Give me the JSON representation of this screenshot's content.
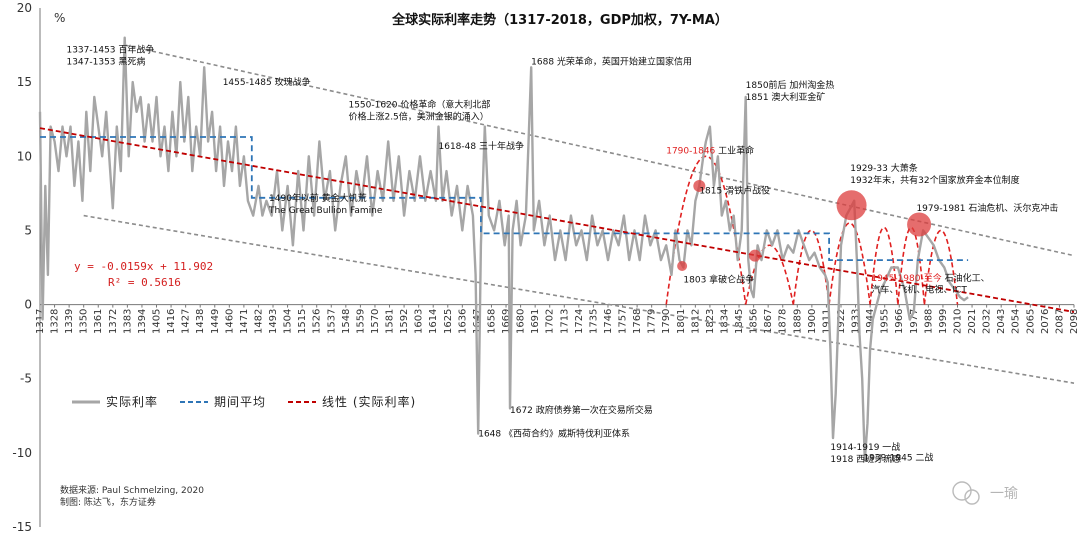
{
  "chart_data": {
    "type": "line",
    "title": "全球实际利率走势（1317-2018，GDP加权，7Y-MA）",
    "ylabel": "%",
    "ylim": [
      -15,
      20
    ],
    "xlim": [
      1317,
      2098
    ],
    "y_ticks": [
      20,
      15,
      10,
      5,
      0,
      -5,
      -10,
      -15
    ],
    "x_ticks": [
      1317,
      1328,
      1339,
      1350,
      1361,
      1372,
      1383,
      1394,
      1405,
      1416,
      1427,
      1438,
      1449,
      1460,
      1471,
      1482,
      1493,
      1504,
      1515,
      1526,
      1537,
      1548,
      1559,
      1570,
      1581,
      1592,
      1603,
      1614,
      1625,
      1636,
      1647,
      1658,
      1669,
      1680,
      1691,
      1702,
      1713,
      1724,
      1735,
      1746,
      1757,
      1768,
      1779,
      1790,
      1801,
      1812,
      1823,
      1834,
      1845,
      1856,
      1867,
      1878,
      1889,
      1900,
      1911,
      1922,
      1933,
      1944,
      1955,
      1966,
      1977,
      1988,
      1999,
      2010,
      2021,
      2032,
      2043,
      2054,
      2065,
      2076,
      2087,
      2098
    ],
    "series": [
      {
        "name": "实际利率",
        "color": "#a6a6a6",
        "points": [
          [
            1317,
            13
          ],
          [
            1319,
            -1
          ],
          [
            1321,
            8
          ],
          [
            1323,
            2
          ],
          [
            1325,
            12
          ],
          [
            1328,
            11
          ],
          [
            1331,
            9
          ],
          [
            1334,
            12
          ],
          [
            1337,
            10
          ],
          [
            1340,
            12
          ],
          [
            1343,
            8
          ],
          [
            1346,
            11
          ],
          [
            1349,
            7
          ],
          [
            1352,
            13
          ],
          [
            1355,
            9
          ],
          [
            1358,
            14
          ],
          [
            1361,
            12
          ],
          [
            1364,
            10
          ],
          [
            1367,
            13
          ],
          [
            1370,
            9
          ],
          [
            1372,
            6.5
          ],
          [
            1375,
            12
          ],
          [
            1378,
            9
          ],
          [
            1381,
            18
          ],
          [
            1384,
            10
          ],
          [
            1387,
            15
          ],
          [
            1390,
            13
          ],
          [
            1393,
            14
          ],
          [
            1396,
            11
          ],
          [
            1399,
            13.5
          ],
          [
            1402,
            11
          ],
          [
            1405,
            14
          ],
          [
            1408,
            10
          ],
          [
            1411,
            12
          ],
          [
            1414,
            9
          ],
          [
            1417,
            13
          ],
          [
            1420,
            10
          ],
          [
            1423,
            15
          ],
          [
            1426,
            11
          ],
          [
            1429,
            14
          ],
          [
            1432,
            9
          ],
          [
            1435,
            12
          ],
          [
            1438,
            10
          ],
          [
            1441,
            16
          ],
          [
            1444,
            11
          ],
          [
            1447,
            13
          ],
          [
            1450,
            9
          ],
          [
            1453,
            12
          ],
          [
            1456,
            8
          ],
          [
            1459,
            11
          ],
          [
            1462,
            9
          ],
          [
            1465,
            12
          ],
          [
            1468,
            8
          ],
          [
            1471,
            10
          ],
          [
            1474,
            7
          ],
          [
            1478,
            6
          ],
          [
            1482,
            8
          ],
          [
            1485,
            6
          ],
          [
            1488,
            7
          ],
          [
            1492,
            6
          ],
          [
            1496,
            9
          ],
          [
            1500,
            5
          ],
          [
            1504,
            8
          ],
          [
            1508,
            4
          ],
          [
            1512,
            9
          ],
          [
            1516,
            5
          ],
          [
            1520,
            10
          ],
          [
            1524,
            6
          ],
          [
            1528,
            11
          ],
          [
            1532,
            7
          ],
          [
            1536,
            9
          ],
          [
            1540,
            5
          ],
          [
            1544,
            8
          ],
          [
            1548,
            10
          ],
          [
            1552,
            6
          ],
          [
            1556,
            9
          ],
          [
            1560,
            7
          ],
          [
            1564,
            10
          ],
          [
            1568,
            6
          ],
          [
            1572,
            9
          ],
          [
            1576,
            7
          ],
          [
            1580,
            11
          ],
          [
            1584,
            7
          ],
          [
            1588,
            10
          ],
          [
            1592,
            6
          ],
          [
            1596,
            9
          ],
          [
            1600,
            7
          ],
          [
            1604,
            10
          ],
          [
            1608,
            7
          ],
          [
            1612,
            9
          ],
          [
            1616,
            7
          ],
          [
            1618,
            12
          ],
          [
            1621,
            7
          ],
          [
            1624,
            9
          ],
          [
            1628,
            6
          ],
          [
            1632,
            8
          ],
          [
            1636,
            5
          ],
          [
            1640,
            8
          ],
          [
            1644,
            6
          ],
          [
            1646,
            2
          ],
          [
            1648,
            -8.7
          ],
          [
            1650,
            4
          ],
          [
            1653,
            12
          ],
          [
            1656,
            6
          ],
          [
            1660,
            5
          ],
          [
            1664,
            7
          ],
          [
            1668,
            4
          ],
          [
            1671,
            6
          ],
          [
            1672,
            -7
          ],
          [
            1674,
            5
          ],
          [
            1677,
            7
          ],
          [
            1680,
            4
          ],
          [
            1684,
            6
          ],
          [
            1688,
            16
          ],
          [
            1690,
            5
          ],
          [
            1694,
            7
          ],
          [
            1698,
            4
          ],
          [
            1702,
            6
          ],
          [
            1706,
            3
          ],
          [
            1710,
            5
          ],
          [
            1714,
            3
          ],
          [
            1718,
            6
          ],
          [
            1722,
            4
          ],
          [
            1726,
            5
          ],
          [
            1730,
            3
          ],
          [
            1734,
            6
          ],
          [
            1738,
            4
          ],
          [
            1742,
            5
          ],
          [
            1746,
            3
          ],
          [
            1750,
            5
          ],
          [
            1754,
            4
          ],
          [
            1758,
            6
          ],
          [
            1762,
            3
          ],
          [
            1766,
            5
          ],
          [
            1770,
            3
          ],
          [
            1774,
            6
          ],
          [
            1778,
            4
          ],
          [
            1782,
            5
          ],
          [
            1786,
            3
          ],
          [
            1790,
            4
          ],
          [
            1794,
            2
          ],
          [
            1797,
            5
          ],
          [
            1800,
            3
          ],
          [
            1803,
            2.5
          ],
          [
            1806,
            5
          ],
          [
            1809,
            4
          ],
          [
            1812,
            7
          ],
          [
            1815,
            8
          ],
          [
            1818,
            10
          ],
          [
            1820,
            11
          ],
          [
            1823,
            12
          ],
          [
            1826,
            8
          ],
          [
            1829,
            10
          ],
          [
            1832,
            6
          ],
          [
            1835,
            7
          ],
          [
            1838,
            5
          ],
          [
            1841,
            6
          ],
          [
            1844,
            3
          ],
          [
            1847,
            5
          ],
          [
            1850,
            14
          ],
          [
            1852,
            3
          ],
          [
            1854,
            1
          ],
          [
            1856,
            0.5
          ],
          [
            1859,
            4
          ],
          [
            1862,
            3
          ],
          [
            1866,
            5
          ],
          [
            1870,
            4
          ],
          [
            1874,
            5
          ],
          [
            1878,
            3
          ],
          [
            1882,
            4
          ],
          [
            1886,
            3.5
          ],
          [
            1890,
            5
          ],
          [
            1894,
            4
          ],
          [
            1898,
            3
          ],
          [
            1902,
            3.5
          ],
          [
            1906,
            2.5
          ],
          [
            1910,
            2
          ],
          [
            1912,
            1.5
          ],
          [
            1914,
            -3
          ],
          [
            1916,
            -9
          ],
          [
            1918,
            -6
          ],
          [
            1920,
            -1
          ],
          [
            1922,
            4
          ],
          [
            1926,
            6
          ],
          [
            1929,
            6.5
          ],
          [
            1932,
            7
          ],
          [
            1934,
            3
          ],
          [
            1936,
            -2
          ],
          [
            1938,
            -5
          ],
          [
            1940,
            -10.5
          ],
          [
            1942,
            -8
          ],
          [
            1944,
            -3
          ],
          [
            1946,
            -1
          ],
          [
            1949,
            0
          ],
          [
            1952,
            1
          ],
          [
            1955,
            1.5
          ],
          [
            1960,
            2.5
          ],
          [
            1965,
            2.5
          ],
          [
            1970,
            1
          ],
          [
            1974,
            -1
          ],
          [
            1977,
            -0.5
          ],
          [
            1980,
            3
          ],
          [
            1984,
            5
          ],
          [
            1988,
            4.5
          ],
          [
            1992,
            4
          ],
          [
            1996,
            3
          ],
          [
            2000,
            2.5
          ],
          [
            2004,
            1.5
          ],
          [
            2008,
            1
          ],
          [
            2012,
            0.5
          ],
          [
            2015,
            0.3
          ],
          [
            2018,
            0.5
          ]
        ]
      },
      {
        "name": "期间平均",
        "color": "#2e75b6",
        "points": [
          [
            1317,
            11.3
          ],
          [
            1477,
            11.3
          ],
          [
            1477,
            7.2
          ],
          [
            1650,
            7.2
          ],
          [
            1650,
            4.8
          ],
          [
            1913,
            4.8
          ],
          [
            1913,
            3
          ],
          [
            2018,
            3
          ]
        ]
      },
      {
        "name": "线性（实际利率）",
        "color": "#c00000",
        "points": [
          [
            1317,
            11.9
          ],
          [
            2098,
            -0.5
          ]
        ]
      }
    ],
    "trend_upper": [
      [
        1381,
        17.5
      ],
      [
        2098,
        3.3
      ]
    ],
    "trend_lower": [
      [
        1350,
        6
      ],
      [
        2098,
        -5.3
      ]
    ],
    "cycles": [
      [
        1790,
        1850,
        10
      ],
      [
        1850,
        1886,
        4
      ],
      [
        1886,
        1913,
        5
      ],
      [
        1913,
        1944,
        5.5
      ],
      [
        1944,
        1965,
        5.2
      ],
      [
        1965,
        1985,
        5.2
      ],
      [
        1985,
        2010,
        5
      ]
    ],
    "bubbles": [
      [
        1802,
        2.6,
        5
      ],
      [
        1815,
        8,
        6
      ],
      [
        1857,
        3.3,
        6
      ],
      [
        1930,
        6.7,
        15
      ],
      [
        1981,
        5.4,
        12
      ]
    ],
    "equation": [
      "y = -0.0159x + 11.902",
      "R² = 0.5616"
    ],
    "legend": [
      "实际利率",
      "期间平均",
      "线性 (实际利率)"
    ],
    "source": [
      "数据来源:  Paul Schmelzing,  2020",
      "制图:  陈达飞，东方证券"
    ],
    "watermark": "一瑜",
    "annotations": [
      {
        "x": 1337,
        "y": 17.0,
        "lines": [
          "1337-1453 百年战争",
          "1347-1353 黑死病"
        ]
      },
      {
        "x": 1455,
        "y": 14.8,
        "lines": [
          "1455-1485 玫瑰战争"
        ]
      },
      {
        "x": 1688,
        "y": 16.2,
        "lines": [
          "1688 光荣革命，英国开始建立国家信用"
        ]
      },
      {
        "x": 1550,
        "y": 13.3,
        "lines": [
          "1550-1620 价格革命（意大利北部",
          "价格上涨2.5倍，美洲金银的涌入）"
        ]
      },
      {
        "x": 1618,
        "y": 10.5,
        "lines": [
          "1618-48 三十年战争"
        ]
      },
      {
        "x": 1850,
        "y": 14.6,
        "lines": [
          "1850前后  加州淘金热",
          "1851  澳大利亚金矿"
        ]
      },
      {
        "x": 1490,
        "y": 7.0,
        "lines": [
          "1490年以前 黄金大饥荒",
          "The Great Bullion Famine"
        ]
      },
      {
        "x": 1815,
        "y": 7.5,
        "lines": [
          "1815 滑铁卢战役"
        ]
      },
      {
        "x": 1929,
        "y": 9.0,
        "lines": [
          "1929-33 大萧条",
          "1932年末，共有32个国家放弃金本位制度"
        ]
      },
      {
        "x": 1979,
        "y": 6.3,
        "lines": [
          "1979-1981 石油危机、沃尔克冲击"
        ]
      },
      {
        "x": 1803,
        "y": 1.5,
        "lines": [
          "1803 拿破仑战争"
        ]
      },
      {
        "x": 1672,
        "y": -7.3,
        "lines": [
          "1672 政府债券第一次在交易所交易"
        ]
      },
      {
        "x": 1648,
        "y": -8.9,
        "lines": [
          "1648 《西荷合约》威斯特伐利亚体系"
        ]
      },
      {
        "x": 1914,
        "y": -9.8,
        "lines": [
          "1914-1919 一战",
          "1918  西班牙流感"
        ]
      },
      {
        "x": 1939,
        "y": -10.5,
        "lines": [
          "1939-1945 二战"
        ]
      }
    ],
    "red_annotations": [
      {
        "x": 1790,
        "y": 10.2,
        "text": "1790-1846",
        "suffix": " 工业革命"
      },
      {
        "x": 1945,
        "y": 1.6,
        "text": "1945-1980-至今",
        "suffix": " 石油化工、"
      },
      {
        "x": 1945,
        "y": 0.8,
        "text": "",
        "suffix": "汽车、飞机、电视、ICT"
      }
    ]
  }
}
